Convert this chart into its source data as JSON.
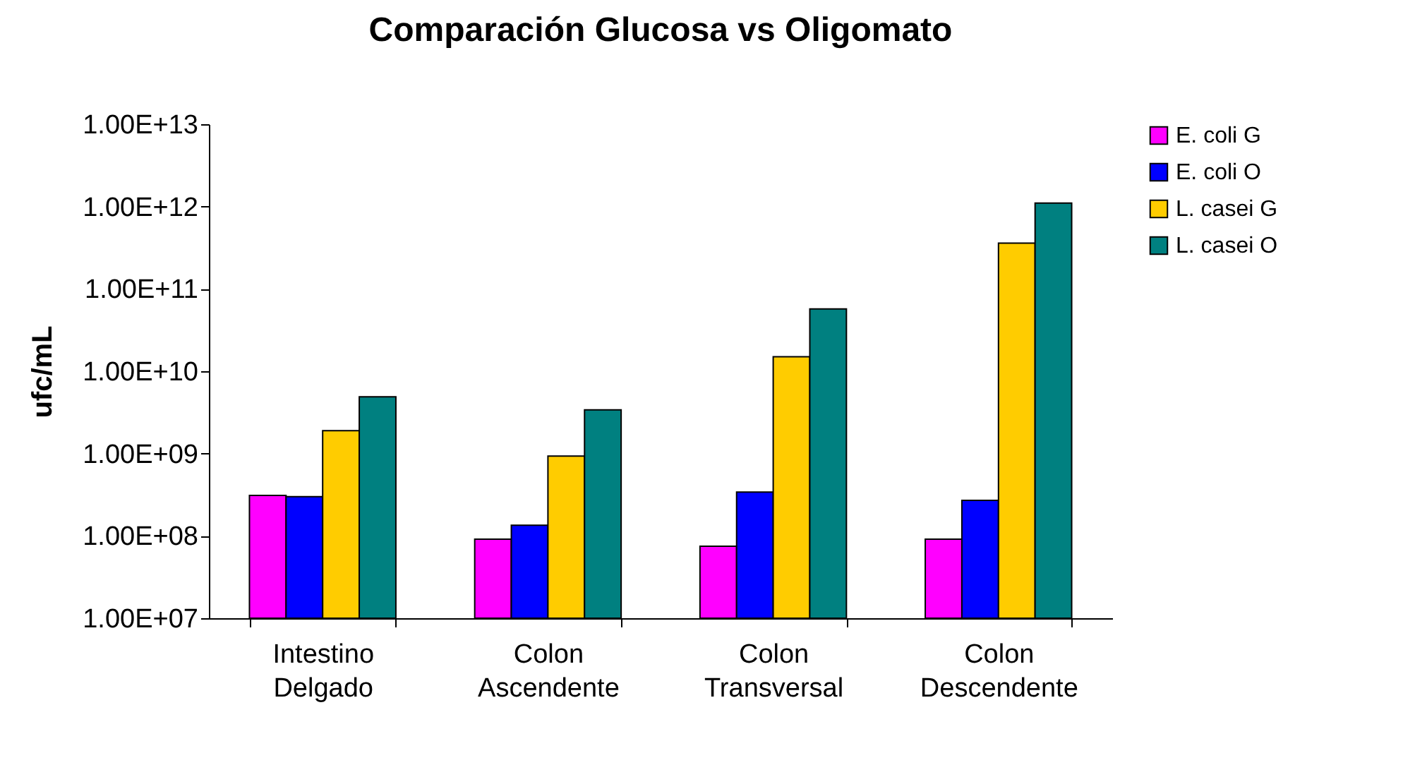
{
  "chart_data": {
    "type": "bar",
    "title": "Comparación Glucosa vs Oligomato",
    "ylabel": "ufc/mL",
    "categories": [
      "Intestino Delgado",
      "Colon Ascendente",
      "Colon Transversal",
      "Colon Descendente"
    ],
    "series": [
      {
        "name": "E. coli G",
        "color": "#ff00ff",
        "values": [
          310000000.0,
          91000000.0,
          75000000.0,
          91000000.0
        ]
      },
      {
        "name": "E. coli O",
        "color": "#0000ff",
        "values": [
          300000000.0,
          135000000.0,
          340000000.0,
          270000000.0
        ]
      },
      {
        "name": "L. casei G",
        "color": "#ffcc00",
        "values": [
          1900000000.0,
          930000000.0,
          15000000000.0,
          360000000000.0
        ]
      },
      {
        "name": "L. casei O",
        "color": "#008080",
        "values": [
          4900000000.0,
          3400000000.0,
          57000000000.0,
          1100000000000.0
        ]
      }
    ],
    "log": true,
    "ylim": [
      10000000.0,
      10000000000000.0
    ],
    "yticks": [
      {
        "value": 10000000.0,
        "label": "1.00E+07"
      },
      {
        "value": 100000000.0,
        "label": "1.00E+08"
      },
      {
        "value": 1000000000.0,
        "label": "1.00E+09"
      },
      {
        "value": 10000000000.0,
        "label": "1.00E+10"
      },
      {
        "value": 100000000000.0,
        "label": "1.00E+11"
      },
      {
        "value": 1000000000000.0,
        "label": "1.00E+12"
      },
      {
        "value": 10000000000000.0,
        "label": "1.00E+13"
      }
    ],
    "grid": false,
    "legend": "right"
  }
}
